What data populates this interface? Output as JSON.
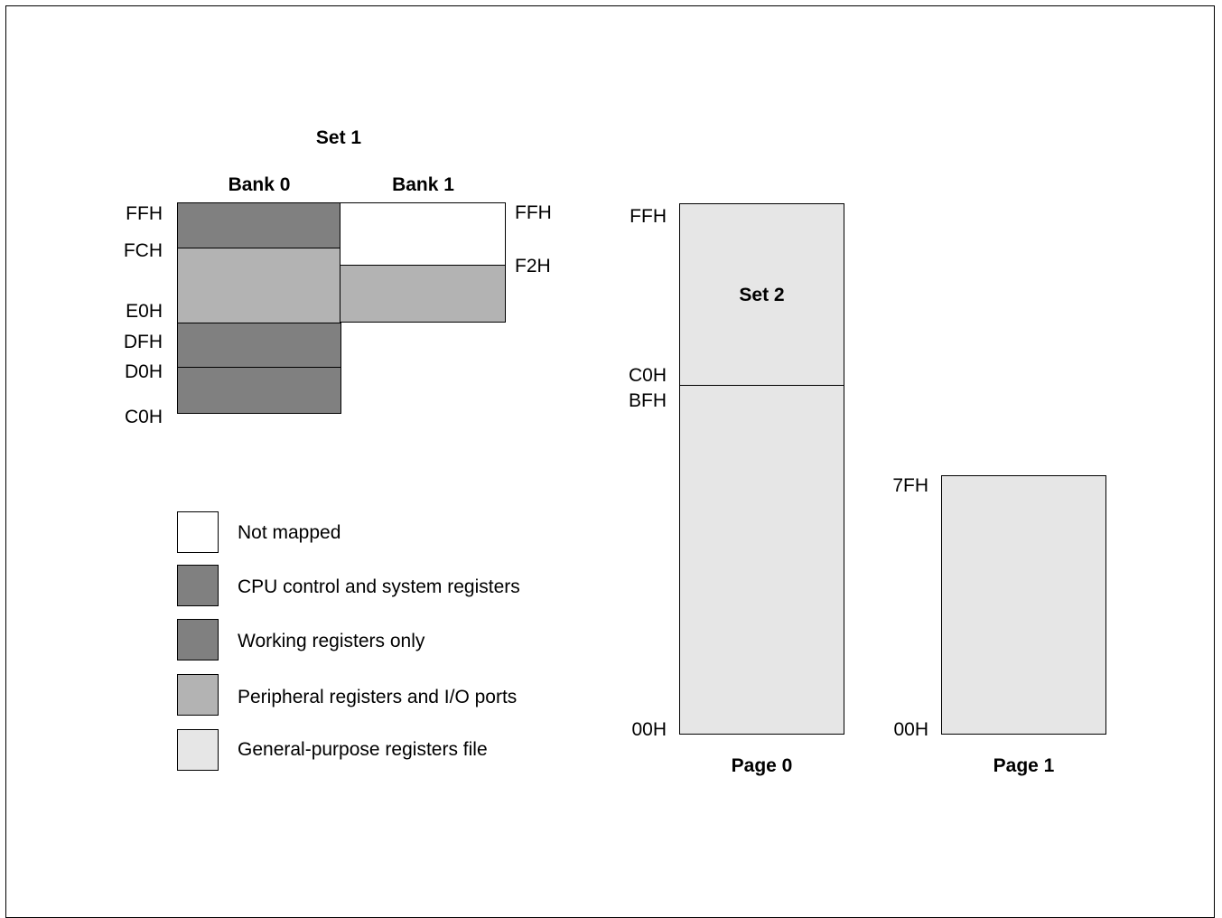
{
  "diagram": {
    "set1": {
      "title": "Set 1",
      "bank0_label": "Bank 0",
      "bank1_label": "Bank 1",
      "bank0_addresses": {
        "ffh": "FFH",
        "fch": "FCH",
        "e0h": "E0H",
        "dfh": "DFH",
        "d0h": "D0H",
        "c0h": "C0H"
      },
      "bank1_addresses": {
        "ffh": "FFH",
        "f2h": "F2H"
      }
    },
    "page0": {
      "label": "Page 0",
      "set2_label": "Set 2",
      "addresses": {
        "ffh": "FFH",
        "c0h": "C0H",
        "bfh": "BFH",
        "h00": "00H"
      }
    },
    "page1": {
      "label": "Page 1",
      "addresses": {
        "h7f": "7FH",
        "h00": "00H"
      }
    },
    "legend": [
      {
        "label": "Not mapped",
        "color": "#ffffff"
      },
      {
        "label": "CPU control and system registers",
        "color": "#808080"
      },
      {
        "label": "Working registers only",
        "color": "#808080"
      },
      {
        "label": "Peripheral registers and I/O ports",
        "color": "#b3b3b3"
      },
      {
        "label": "General-purpose registers file",
        "color": "#e6e6e6"
      }
    ],
    "colors": {
      "dark_gray": "#808080",
      "mid_gray": "#b3b3b3",
      "light_gray": "#e6e6e6",
      "white": "#ffffff",
      "outline": "#000000"
    }
  }
}
